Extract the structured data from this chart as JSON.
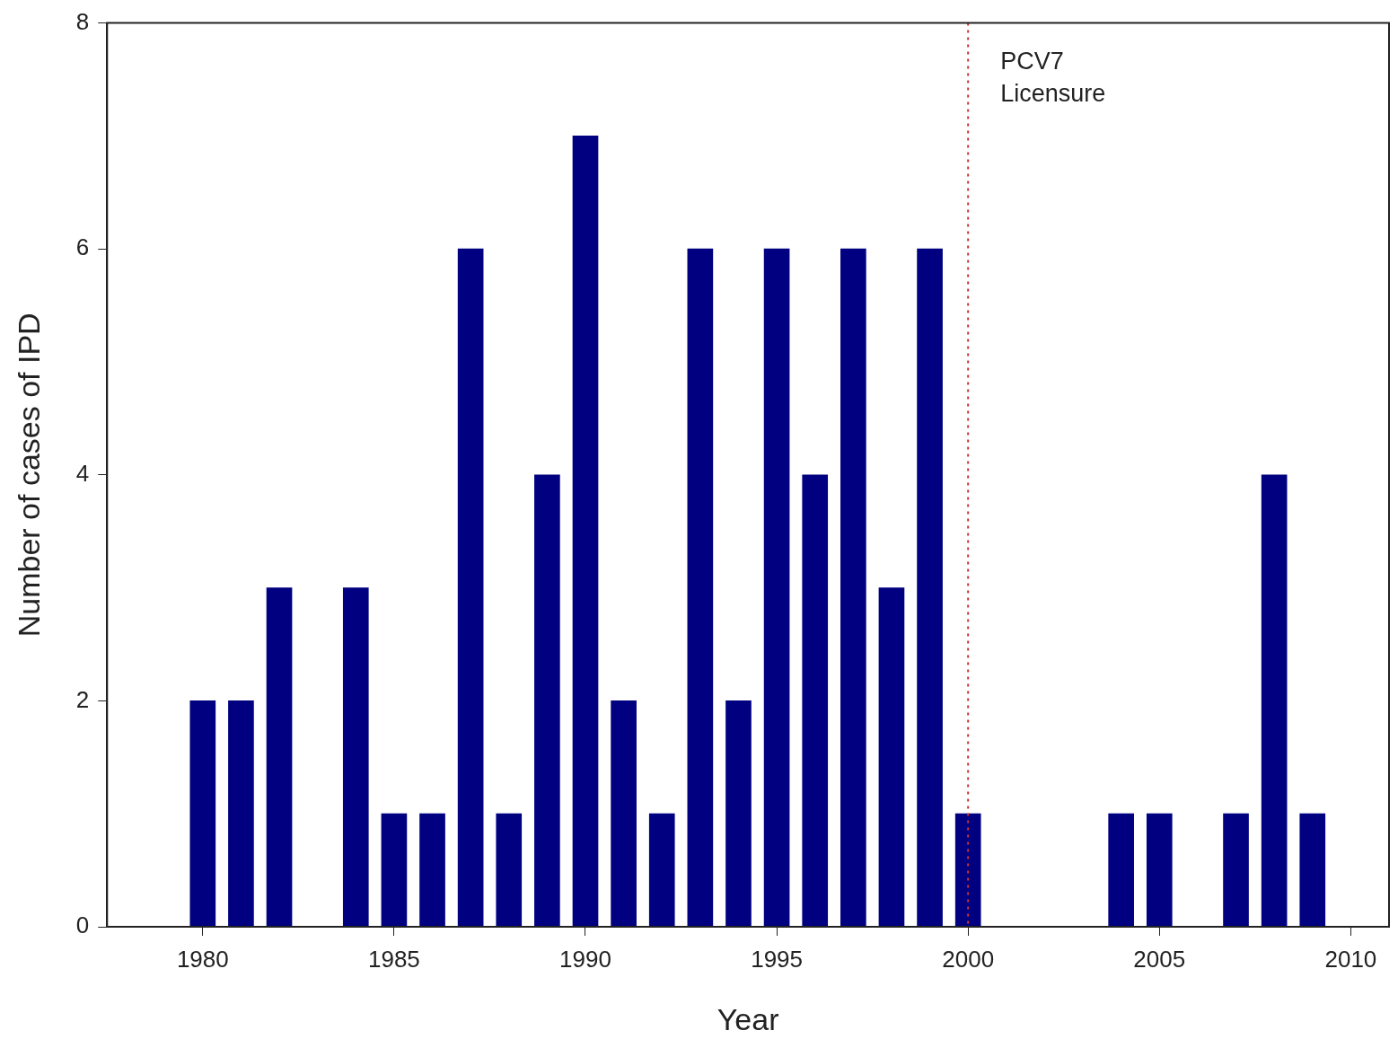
{
  "chart_data": {
    "type": "bar",
    "xlabel": "Year",
    "ylabel": "Number of cases of IPD",
    "x": [
      1980,
      1981,
      1982,
      1984,
      1985,
      1986,
      1987,
      1988,
      1989,
      1990,
      1991,
      1992,
      1993,
      1994,
      1995,
      1996,
      1997,
      1998,
      1999,
      2000,
      2004,
      2005,
      2007,
      2008,
      2009
    ],
    "values": [
      2,
      2,
      3,
      3,
      1,
      1,
      6,
      1,
      4,
      7,
      2,
      1,
      6,
      2,
      6,
      4,
      6,
      3,
      6,
      1,
      1,
      1,
      1,
      4,
      1
    ],
    "color": "#000080",
    "xlim": [
      1977.5,
      2011
    ],
    "xticks": [
      1980,
      1985,
      1990,
      1995,
      2000,
      2005,
      2010
    ],
    "ylim": [
      0,
      8
    ],
    "yticks": [
      0,
      2,
      4,
      6,
      8
    ],
    "grid": false,
    "legend": false,
    "ref_lines": [
      {
        "axis": "x",
        "value": 2000,
        "label": "PCV7 Licensure",
        "color": "#cc3333",
        "line_style": "dotted"
      }
    ]
  }
}
